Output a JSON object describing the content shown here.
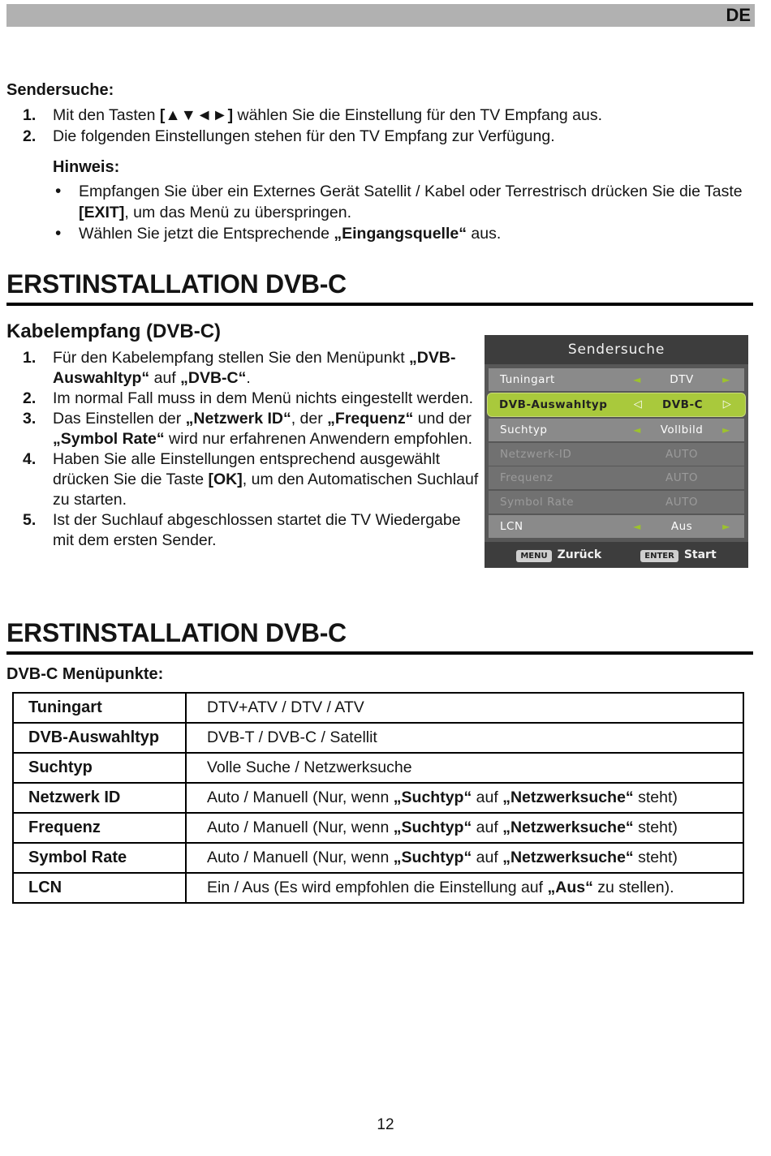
{
  "page": {
    "lang_badge": "DE",
    "page_number": "12"
  },
  "sendersuche": {
    "title": "Sendersuche:",
    "steps": [
      [
        [
          "Mit den Tasten ",
          false
        ],
        [
          "[▲▼◄►]",
          true
        ],
        [
          " wählen Sie die Einstellung für den TV Empfang aus.",
          false
        ]
      ],
      [
        [
          "Die folgenden Einstellungen stehen für den TV Empfang zur Verfügung.",
          false
        ]
      ]
    ],
    "hinweis": {
      "title": "Hinweis:",
      "bullets": [
        [
          [
            "Empfangen Sie über ein Externes Gerät Satellit / Kabel oder Terrestrisch drücken Sie die Taste ",
            false
          ],
          [
            "[EXIT]",
            true
          ],
          [
            ", um das Menü zu überspringen.",
            false
          ]
        ],
        [
          [
            "Wählen Sie jetzt die Entsprechende ",
            false
          ],
          [
            "„Eingangsquelle“",
            true
          ],
          [
            " aus.",
            false
          ]
        ]
      ]
    }
  },
  "section1": {
    "title": "ERSTINSTALLATION DVB-C"
  },
  "kabelempfang": {
    "title": "Kabelempfang (DVB-C)",
    "steps": [
      [
        [
          "Für den Kabelempfang stellen Sie den Menüpunkt ",
          false
        ],
        [
          "„DVB-Auswahltyp“",
          true
        ],
        [
          " auf ",
          false
        ],
        [
          "„DVB-C“",
          true
        ],
        [
          ".",
          false
        ]
      ],
      [
        [
          "Im normal Fall muss in dem Menü nichts eingestellt werden.",
          false
        ]
      ],
      [
        [
          "Das Einstellen der ",
          false
        ],
        [
          "„Netzwerk ID“",
          true
        ],
        [
          ", der ",
          false
        ],
        [
          "„Frequenz“",
          true
        ],
        [
          " und der ",
          false
        ],
        [
          "„Symbol Rate“",
          true
        ],
        [
          " wird nur erfahrenen Anwendern empfohlen.",
          false
        ]
      ],
      [
        [
          "Haben Sie alle Einstellungen entsprechend ausgewählt drücken Sie die Taste ",
          false
        ],
        [
          "[OK]",
          true
        ],
        [
          ", um den Automatischen Suchlauf zu starten.",
          false
        ]
      ],
      [
        [
          "Ist der Suchlauf abgeschlossen startet die TV Wiedergabe mit dem ersten Sender.",
          false
        ]
      ]
    ]
  },
  "tv_menu": {
    "title": "Sendersuche",
    "rows": [
      {
        "label": "Tuningart",
        "value": "DTV",
        "state": "normal"
      },
      {
        "label": "DVB-Auswahltyp",
        "value": "DVB-C",
        "state": "selected"
      },
      {
        "label": "Suchtyp",
        "value": "Vollbild",
        "state": "normal"
      },
      {
        "label": "Netzwerk-ID",
        "value": "AUTO",
        "state": "disabled"
      },
      {
        "label": "Frequenz",
        "value": "AUTO",
        "state": "disabled"
      },
      {
        "label": "Symbol Rate",
        "value": "AUTO",
        "state": "disabled"
      },
      {
        "label": "LCN",
        "value": "Aus",
        "state": "normal"
      }
    ],
    "icons": {
      "left_arrow": "◄",
      "right_arrow": "►",
      "left_arrow_selected": "◁",
      "right_arrow_selected": "▷"
    },
    "footer": {
      "menu_key": "MENU",
      "menu_label": "Zurück",
      "enter_key": "ENTER",
      "enter_label": "Start"
    },
    "colors": {
      "menu_background": "#575757",
      "title_bar": "#3d3d3d",
      "row": "#8a8a8a",
      "row_disabled": "#717171",
      "row_highlight": "#a9c93c",
      "arrow_green": "#9dc22d",
      "key_badge": "#cfcfcf",
      "page_top_bar": "#b1b1b1"
    }
  },
  "section2": {
    "title": "ERSTINSTALLATION DVB-C",
    "subtitle": "DVB-C Menüpunkte:"
  },
  "menu_table": {
    "rows": [
      {
        "key": "Tuningart",
        "value": [
          [
            "DTV+ATV / DTV / ATV",
            false
          ]
        ]
      },
      {
        "key": "DVB-Auswahltyp",
        "value": [
          [
            "DVB-T / DVB-C / Satellit",
            false
          ]
        ]
      },
      {
        "key": "Suchtyp",
        "value": [
          [
            "Volle Suche / Netzwerksuche",
            false
          ]
        ]
      },
      {
        "key": "Netzwerk ID",
        "value": [
          [
            "Auto / Manuell (Nur, wenn ",
            false
          ],
          [
            "„Suchtyp“",
            true
          ],
          [
            " auf ",
            false
          ],
          [
            "„Netzwerksuche“",
            true
          ],
          [
            " steht)",
            false
          ]
        ]
      },
      {
        "key": "Frequenz",
        "value": [
          [
            "Auto / Manuell (Nur, wenn ",
            false
          ],
          [
            "„Suchtyp“",
            true
          ],
          [
            " auf ",
            false
          ],
          [
            "„Netzwerksuche“",
            true
          ],
          [
            " steht)",
            false
          ]
        ]
      },
      {
        "key": "Symbol Rate",
        "value": [
          [
            "Auto / Manuell (Nur, wenn ",
            false
          ],
          [
            "„Suchtyp“",
            true
          ],
          [
            " auf ",
            false
          ],
          [
            "„Netzwerksuche“",
            true
          ],
          [
            " steht)",
            false
          ]
        ]
      },
      {
        "key": "LCN",
        "value": [
          [
            "Ein / Aus (Es wird empfohlen die Einstellung auf ",
            false
          ],
          [
            "„Aus“",
            true
          ],
          [
            " zu stellen).",
            false
          ]
        ]
      }
    ]
  }
}
